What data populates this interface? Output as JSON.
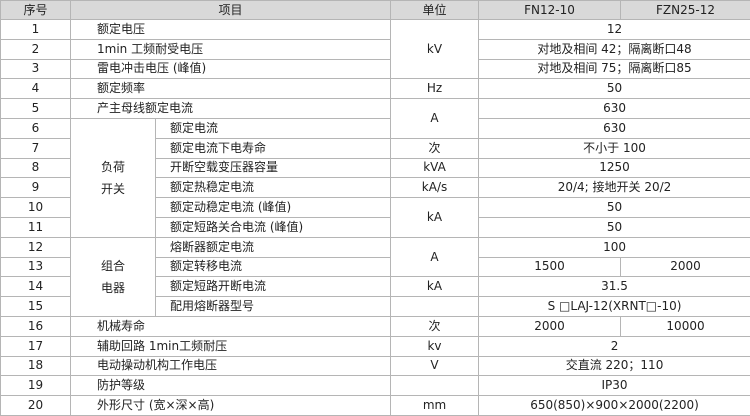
{
  "header": {
    "no": "序号",
    "item": "项目",
    "unit": "单位",
    "model_a": "FN12-10",
    "model_b": "FZN25-12"
  },
  "groups": [
    {
      "lines": [
        "负荷",
        "开关"
      ]
    },
    {
      "lines": [
        "组合",
        "电器"
      ]
    }
  ],
  "rows": [
    {
      "no": 1,
      "item": "额定电压",
      "unit": "kV",
      "values": [
        12
      ]
    },
    {
      "no": 2,
      "item": "1min 工频耐受电压",
      "values": [
        "对地及相间 42；隔离断口48"
      ]
    },
    {
      "no": 3,
      "item": "雷电冲击电压 (峰值)",
      "values": [
        "对地及相间 75；隔离断口85"
      ]
    },
    {
      "no": 4,
      "item": "额定频率",
      "unit": "Hz",
      "values": [
        50
      ]
    },
    {
      "no": 5,
      "item": "产主母线额定电流",
      "unit": "A",
      "values": [
        630
      ]
    },
    {
      "no": 6,
      "item": "额定电流",
      "values": [
        630
      ]
    },
    {
      "no": 7,
      "item": "额定电流下电寿命",
      "unit": "次",
      "values": [
        "不小于 100"
      ]
    },
    {
      "no": 8,
      "item": "开断空载变压器容量",
      "unit": "kVA",
      "values": [
        1250
      ]
    },
    {
      "no": 9,
      "item": "额定热稳定电流",
      "unit": "kA/s",
      "values": [
        "20/4; 接地开关 20/2"
      ]
    },
    {
      "no": 10,
      "item": "额定动稳定电流 (峰值)",
      "unit": "kA",
      "values": [
        50
      ]
    },
    {
      "no": 11,
      "item": "额定短路关合电流 (峰值)",
      "values": [
        50
      ]
    },
    {
      "no": 12,
      "item": "熔断器额定电流",
      "unit": "A",
      "values": [
        100
      ]
    },
    {
      "no": 13,
      "item": "额定转移电流",
      "values": [
        1500,
        2000
      ]
    },
    {
      "no": 14,
      "item": "额定短路开断电流",
      "unit": "kA",
      "values": [
        31.5
      ]
    },
    {
      "no": 15,
      "item": "配用熔断器型号",
      "values": [
        "S □LAJ-12(XRNT□-10)"
      ]
    },
    {
      "no": 16,
      "item": "机械寿命",
      "unit": "次",
      "values": [
        2000,
        10000
      ]
    },
    {
      "no": 17,
      "item": "辅助回路 1min工频耐压",
      "unit": "kv",
      "values": [
        2
      ]
    },
    {
      "no": 18,
      "item": "电动操动机构工作电压",
      "unit": "V",
      "values": [
        "交直流 220；110"
      ]
    },
    {
      "no": 19,
      "item": "防护等级",
      "values": [
        "IP30"
      ]
    },
    {
      "no": 20,
      "item": "外形尺寸 (宽×深×高)",
      "unit": "mm",
      "values": [
        "650(850)×900×2000(2200)"
      ]
    }
  ]
}
